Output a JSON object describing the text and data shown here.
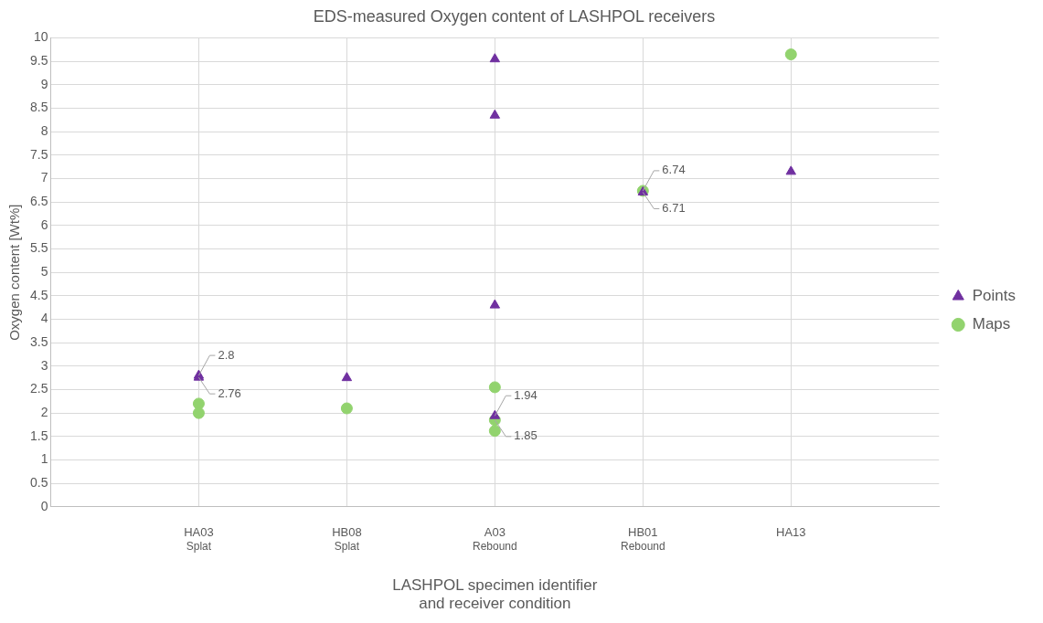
{
  "chart_data": {
    "type": "scatter",
    "title": "EDS-measured Oxygen content of LASHPOL receivers",
    "xlabel": "LASHPOL specimen identifier\nand receiver condition",
    "ylabel": "Oxygen content [Wt%]",
    "categories": [
      "HA03\nSplat",
      "HB08\nSplat",
      "A03\nRebound",
      "HB01\nRebound",
      "HA13"
    ],
    "series": [
      {
        "name": "Points",
        "color": "#7030a0",
        "marker": "triangle",
        "x": [
          "HA03\nSplat",
          "HA03\nSplat",
          "HB08\nSplat",
          "A03\nRebound",
          "A03\nRebound",
          "A03\nRebound",
          "A03\nRebound",
          "HB01\nRebound",
          "HA13"
        ],
        "values": [
          2.8,
          2.76,
          2.75,
          9.55,
          8.35,
          4.3,
          1.94,
          6.71,
          7.15
        ],
        "value_labels": [
          "2.8",
          "2.76",
          null,
          null,
          null,
          null,
          "1.94",
          "6.71",
          null
        ]
      },
      {
        "name": "Maps",
        "color": "#92d36e",
        "marker": "circle",
        "x": [
          "HA03\nSplat",
          "HA03\nSplat",
          "HB08\nSplat",
          "A03\nRebound",
          "A03\nRebound",
          "A03\nRebound",
          "HB01\nRebound",
          "HA13"
        ],
        "values": [
          2.2,
          2.0,
          2.1,
          2.55,
          1.85,
          1.62,
          6.74,
          9.65
        ],
        "value_labels": [
          null,
          null,
          null,
          null,
          "1.85",
          null,
          "6.74",
          null
        ]
      }
    ],
    "ylim": [
      0,
      10
    ],
    "yticks": [
      0,
      0.5,
      1,
      1.5,
      2,
      2.5,
      3,
      3.5,
      4,
      4.5,
      5,
      5.5,
      6,
      6.5,
      7,
      7.5,
      8,
      8.5,
      9,
      9.5,
      10
    ],
    "grid": true,
    "legend": "right"
  }
}
